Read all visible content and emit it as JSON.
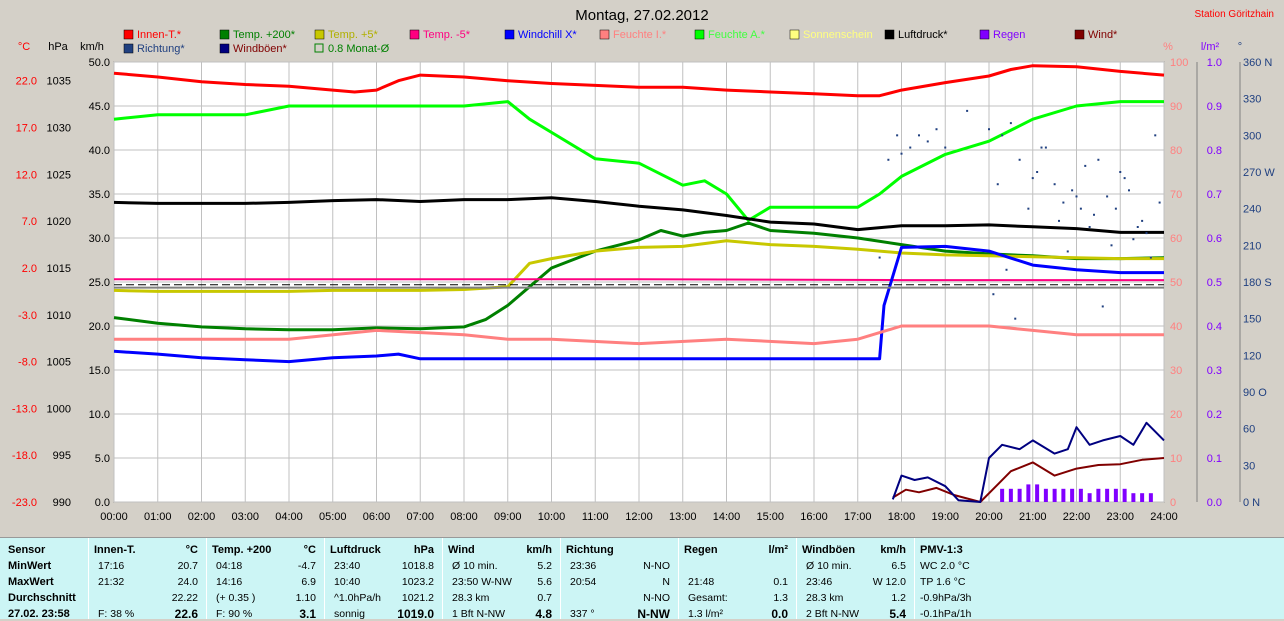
{
  "header": {
    "title": "Montag, 27.02.2012",
    "station": "Station Göritzhain"
  },
  "legend": [
    {
      "label": "Innen-T.*",
      "color": "#ff0000",
      "text_color": "#ff0000",
      "box": "fill"
    },
    {
      "label": "Temp. +200*",
      "color": "#008000",
      "text_color": "#008000",
      "box": "fill"
    },
    {
      "label": "Temp. +5*",
      "color": "#c8c800",
      "text_color": "#b0b000",
      "box": "fill"
    },
    {
      "label": "Temp. -5*",
      "color": "#ff0080",
      "text_color": "#ff0080",
      "box": "fill"
    },
    {
      "label": "Windchill X*",
      "color": "#0000ff",
      "text_color": "#0000ff",
      "box": "fill"
    },
    {
      "label": "Feuchte I.*",
      "color": "#ff8080",
      "text_color": "#ff8080",
      "box": "fill"
    },
    {
      "label": "Feuchte A.*",
      "color": "#00ff00",
      "text_color": "#40ff40",
      "box": "fill"
    },
    {
      "label": "Sonnenschein",
      "color": "#ffff80",
      "text_color": "#ffff80",
      "box": "fill"
    },
    {
      "label": "Luftdruck*",
      "color": "#000000",
      "text_color": "#000000",
      "box": "fill"
    },
    {
      "label": "Regen",
      "color": "#8000ff",
      "text_color": "#8000ff",
      "box": "fill"
    },
    {
      "label": "Wind*",
      "color": "#800000",
      "text_color": "#800000",
      "box": "fill"
    },
    {
      "label": "Richtung*",
      "color": "#204080",
      "text_color": "#204080",
      "box": "fill"
    },
    {
      "label": "Windböen*",
      "color": "#000080",
      "text_color": "#800000",
      "box": "fill"
    },
    {
      "label": "0.8 Monat-Ø",
      "color": "#008000",
      "text_color": "#008000",
      "box": "outline"
    }
  ],
  "axes": {
    "left_units": [
      "°C",
      "hPa",
      "km/h"
    ],
    "right_units": [
      "%",
      "l/m²",
      "°"
    ],
    "temp_ticks": [
      "22.0",
      "17.0",
      "12.0",
      "7.0",
      "2.0",
      "-3.0",
      "-8.0",
      "-13.0",
      "-18.0",
      "-23.0"
    ],
    "hpa_ticks": [
      "1035",
      "1030",
      "1025",
      "1020",
      "1015",
      "1010",
      "1005",
      "1000",
      "995",
      "990"
    ],
    "kmh_ticks": [
      "50.0",
      "45.0",
      "40.0",
      "35.0",
      "30.0",
      "25.0",
      "20.0",
      "15.0",
      "10.0",
      "5.0",
      "0.0"
    ],
    "pct_ticks": [
      "100",
      "90",
      "80",
      "70",
      "60",
      "50",
      "40",
      "30",
      "20",
      "10",
      "0"
    ],
    "rain_ticks": [
      "1.0",
      "0.9",
      "0.8",
      "0.7",
      "0.6",
      "0.5",
      "0.4",
      "0.3",
      "0.2",
      "0.1",
      "0.0"
    ],
    "dir_ticks": [
      "360 N",
      "330",
      "300",
      "270 W",
      "240",
      "210",
      "180 S",
      "150",
      "120",
      "90 O",
      "60",
      "30",
      "0 N"
    ],
    "time_ticks": [
      "00:00",
      "01:00",
      "02:00",
      "03:00",
      "04:00",
      "05:00",
      "06:00",
      "07:00",
      "08:00",
      "09:00",
      "10:00",
      "11:00",
      "12:00",
      "13:00",
      "14:00",
      "15:00",
      "16:00",
      "17:00",
      "18:00",
      "19:00",
      "20:00",
      "21:00",
      "22:00",
      "23:00",
      "24:00"
    ]
  },
  "chart_data": {
    "type": "line",
    "title": "Montag, 27.02.2012",
    "x_unit": "hour of day",
    "xlim": [
      0,
      24
    ],
    "axes_ranges": {
      "temperature_c": [
        -23,
        24
      ],
      "pressure_hpa": [
        990,
        1037
      ],
      "wind_kmh": [
        0,
        50
      ],
      "humidity_pct": [
        0,
        100
      ],
      "rain_lm2": [
        0,
        1.0
      ],
      "direction_deg": [
        0,
        360
      ]
    },
    "grid": true,
    "series": [
      {
        "name": "Innen-T.*",
        "color": "#ff0000",
        "axis": "temperature_c",
        "x": [
          0,
          1,
          2,
          3,
          4,
          5,
          5.5,
          6,
          6.5,
          7,
          8,
          9,
          10,
          11,
          12,
          13,
          14,
          15,
          16,
          17,
          17.5,
          18,
          19,
          20,
          20.5,
          21,
          22,
          23,
          24
        ],
        "y": [
          22.8,
          22.4,
          21.9,
          21.6,
          21.4,
          21.0,
          20.8,
          21.0,
          22.0,
          22.6,
          22.4,
          22.0,
          21.7,
          21.5,
          21.3,
          21.3,
          21.0,
          20.8,
          20.6,
          20.4,
          20.4,
          21.0,
          21.8,
          22.5,
          23.2,
          23.6,
          23.5,
          23.0,
          22.6
        ]
      },
      {
        "name": "Temp. +200*",
        "color": "#008000",
        "axis": "temperature_c",
        "x": [
          0,
          1,
          2,
          3,
          4,
          5,
          6,
          7,
          8,
          8.5,
          9,
          9.5,
          10,
          11,
          12,
          12.5,
          13,
          13.5,
          14,
          14.5,
          15,
          16,
          17,
          18,
          19,
          20,
          21,
          22,
          23,
          24
        ],
        "y": [
          -3.3,
          -3.9,
          -4.3,
          -4.5,
          -4.6,
          -4.6,
          -4.4,
          -4.5,
          -4.3,
          -3.5,
          -2.0,
          0.0,
          2.0,
          3.8,
          5.0,
          6.0,
          5.4,
          5.8,
          6.0,
          6.8,
          6.0,
          5.7,
          5.2,
          4.5,
          3.8,
          3.5,
          3.3,
          3.0,
          3.0,
          3.1
        ]
      },
      {
        "name": "Temp. +5*",
        "color": "#c8c800",
        "axis": "temperature_c",
        "x": [
          0,
          1,
          2,
          3,
          4,
          5,
          6,
          7,
          8,
          9,
          9.5,
          10,
          11,
          12,
          13,
          14,
          15,
          16,
          17,
          18,
          19,
          20,
          21,
          22,
          23,
          24
        ],
        "y": [
          -0.4,
          -0.5,
          -0.5,
          -0.5,
          -0.5,
          -0.4,
          -0.4,
          -0.4,
          -0.3,
          0.0,
          2.5,
          3.0,
          3.8,
          4.2,
          4.3,
          4.9,
          4.5,
          4.3,
          4.0,
          3.6,
          3.4,
          3.3,
          3.2,
          3.1,
          3.0,
          3.0
        ]
      },
      {
        "name": "Temp. -5*",
        "color": "#ff0080",
        "axis": "temperature_c",
        "x": [
          0,
          6,
          12,
          18,
          24
        ],
        "y": [
          0.8,
          0.8,
          0.8,
          0.7,
          0.7
        ]
      },
      {
        "name": "Windchill X*",
        "color": "#0000ff",
        "axis": "temperature_c",
        "x": [
          0,
          1,
          2,
          3,
          4,
          5,
          6,
          6.5,
          7,
          8,
          9,
          10,
          11,
          12,
          13,
          14,
          15,
          16,
          17,
          17.5,
          17.6,
          18,
          19,
          20,
          21,
          22,
          23,
          24
        ],
        "y": [
          -6.9,
          -7.2,
          -7.6,
          -7.8,
          -8.0,
          -7.6,
          -7.4,
          -7.2,
          -7.7,
          -7.7,
          -7.7,
          -7.7,
          -7.7,
          -7.7,
          -7.7,
          -7.7,
          -7.7,
          -7.7,
          -7.7,
          -7.7,
          -2.0,
          4.2,
          4.3,
          3.8,
          2.3,
          1.8,
          1.5,
          1.5
        ]
      },
      {
        "name": "Feuchte I.*",
        "color": "#ff8080",
        "axis": "humidity_pct",
        "x": [
          0,
          2,
          4,
          6,
          8,
          9,
          10,
          12,
          14,
          16,
          17,
          18,
          19,
          20,
          21,
          22,
          23,
          24
        ],
        "y": [
          37,
          37,
          37,
          39,
          38,
          37,
          37,
          36,
          37,
          36,
          37,
          40,
          40,
          40,
          39,
          38,
          38,
          38
        ]
      },
      {
        "name": "Feuchte A.*",
        "color": "#00ff00",
        "axis": "humidity_pct",
        "x": [
          0,
          1,
          2,
          3,
          4,
          5,
          6,
          7,
          8,
          9,
          9.5,
          10,
          11,
          12,
          13,
          13.5,
          14,
          14.5,
          15,
          16,
          17,
          17.5,
          18,
          19,
          20,
          21,
          22,
          23,
          24
        ],
        "y": [
          87,
          88,
          88,
          88,
          90,
          90,
          90,
          90,
          90,
          91,
          87,
          84,
          78,
          77,
          72,
          73,
          70,
          64,
          67,
          67,
          67,
          70,
          74,
          79,
          82,
          87,
          90,
          91,
          91
        ]
      },
      {
        "name": "Luftdruck*",
        "color": "#000000",
        "axis": "pressure_hpa",
        "x": [
          0,
          1,
          2,
          3,
          4,
          5,
          6,
          7,
          8,
          9,
          10,
          11,
          12,
          13,
          14,
          15,
          16,
          17,
          18,
          19,
          20,
          21,
          22,
          23,
          24
        ],
        "y": [
          1022.0,
          1021.9,
          1021.9,
          1021.9,
          1022.0,
          1022.2,
          1022.3,
          1022.1,
          1022.3,
          1022.3,
          1022.5,
          1022.1,
          1021.6,
          1021.2,
          1020.6,
          1019.9,
          1019.7,
          1019.1,
          1019.5,
          1019.5,
          1019.6,
          1019.4,
          1019.2,
          1018.8,
          1018.8
        ]
      },
      {
        "name": "Wind*",
        "color": "#800000",
        "axis": "wind_kmh",
        "x": [
          17.8,
          18.1,
          18.4,
          18.8,
          19.2,
          19.8,
          20.2,
          20.5,
          21.0,
          21.5,
          22.0,
          22.5,
          23.0,
          23.5,
          24.0
        ],
        "y": [
          0.5,
          1.4,
          1.1,
          1.6,
          0.8,
          0.0,
          2.0,
          3.5,
          4.5,
          3.0,
          3.8,
          4.2,
          4.3,
          4.8,
          5.0
        ]
      },
      {
        "name": "Windböen*",
        "color": "#000080",
        "axis": "wind_kmh",
        "x": [
          17.8,
          18.0,
          18.3,
          18.6,
          19.0,
          19.3,
          19.8,
          20.0,
          20.3,
          20.7,
          21.0,
          21.5,
          21.8,
          22.0,
          22.3,
          22.6,
          23.0,
          23.3,
          23.6,
          24.0
        ],
        "y": [
          0.3,
          3.0,
          2.5,
          2.8,
          1.8,
          0.2,
          0.0,
          5.0,
          6.5,
          6.0,
          7.0,
          5.5,
          6.0,
          8.5,
          6.5,
          7.0,
          7.5,
          6.5,
          9.0,
          7.0
        ]
      },
      {
        "name": "Monat-Ø",
        "color": "#808080",
        "axis": "temperature_c",
        "x": [
          0,
          24
        ],
        "y": [
          -0.1,
          -0.1
        ]
      },
      {
        "name": "Monat-Ø dashed",
        "color": "#000000",
        "axis": "temperature_c",
        "x": [
          0,
          24
        ],
        "y": [
          0.2,
          0.2
        ]
      }
    ],
    "direction_points": {
      "name": "Richtung*",
      "color": "#204080",
      "axis": "direction_deg",
      "x": [
        17.5,
        17.7,
        17.9,
        18.0,
        18.2,
        18.4,
        18.6,
        18.8,
        19.0,
        19.5,
        20.0,
        20.2,
        20.3,
        20.5,
        20.7,
        20.9,
        21.1,
        21.3,
        21.5,
        21.7,
        21.9,
        22.1,
        22.3,
        22.5,
        22.7,
        22.9,
        23.1,
        23.3,
        23.5,
        23.7,
        23.9,
        20.1,
        20.4,
        20.6,
        21.0,
        21.2,
        21.6,
        21.8,
        22.0,
        22.2,
        22.4,
        22.6,
        22.8,
        23.0,
        23.2,
        23.4,
        23.6,
        23.8
      ],
      "y": [
        200,
        280,
        300,
        285,
        290,
        300,
        295,
        305,
        290,
        320,
        305,
        260,
        300,
        310,
        280,
        240,
        270,
        290,
        260,
        245,
        255,
        240,
        225,
        280,
        250,
        240,
        265,
        215,
        230,
        200,
        245,
        170,
        190,
        150,
        265,
        290,
        230,
        205,
        250,
        275,
        235,
        160,
        210,
        270,
        255,
        225,
        220,
        300
      ]
    },
    "rain_bars": {
      "name": "Regen",
      "color": "#8000ff",
      "axis": "rain_lm2",
      "x": [
        20.3,
        20.5,
        20.7,
        20.9,
        21.1,
        21.3,
        21.5,
        21.7,
        21.9,
        22.1,
        22.3,
        22.5,
        22.7,
        22.9,
        23.1,
        23.3,
        23.5,
        23.7
      ],
      "y": [
        0.03,
        0.03,
        0.03,
        0.04,
        0.04,
        0.03,
        0.03,
        0.03,
        0.03,
        0.03,
        0.02,
        0.03,
        0.03,
        0.03,
        0.03,
        0.02,
        0.02,
        0.02
      ]
    }
  },
  "summary": {
    "sensor": {
      "header": "Sensor",
      "rows": [
        "MinWert",
        "MaxWert",
        "Durchschnitt",
        "27.02. 23:58"
      ]
    },
    "innen": {
      "header": "Innen-T.",
      "unit": "°C",
      "rows": [
        [
          "17:16",
          "20.7"
        ],
        [
          "21:32",
          "24.0"
        ],
        [
          "",
          "22.22"
        ],
        [
          "F: 38 %",
          "22.6"
        ]
      ]
    },
    "temp200": {
      "header": "Temp. +200",
      "unit": "°C",
      "rows": [
        [
          "04:18",
          "-4.7"
        ],
        [
          "14:16",
          "6.9"
        ],
        [
          "(+ 0.35 )",
          "1.10"
        ],
        [
          "F: 90 %",
          "3.1"
        ]
      ]
    },
    "luftdruck": {
      "header": "Luftdruck",
      "unit": "hPa",
      "rows": [
        [
          "23:40",
          "1018.8"
        ],
        [
          "10:40",
          "1023.2"
        ],
        [
          "^1.0hPa/h",
          "1021.2"
        ],
        [
          "sonnig",
          "1019.0"
        ]
      ]
    },
    "wind": {
      "header": "Wind",
      "unit": "km/h",
      "rows": [
        [
          "Ø 10 min.",
          "5.2"
        ],
        [
          "23:50    W-NW",
          "5.6"
        ],
        [
          "28.3 km",
          "0.7"
        ],
        [
          "1 Bft N-NW",
          "4.8"
        ]
      ]
    },
    "richtung": {
      "header": "Richtung",
      "rows": [
        [
          "23:36",
          "N-NO"
        ],
        [
          "20:54",
          "N"
        ],
        [
          "",
          "N-NO"
        ],
        [
          "337 °",
          "N-NW"
        ]
      ]
    },
    "regen": {
      "header": "Regen",
      "unit": "l/m²",
      "rows": [
        [
          "",
          ""
        ],
        [
          "21:48",
          "0.1"
        ],
        [
          "Gesamt:",
          "1.3"
        ],
        [
          "1.3 l/m²",
          "0.0"
        ]
      ]
    },
    "boeen": {
      "header": "Windböen",
      "unit": "km/h",
      "rows": [
        [
          "Ø 10 min.",
          "6.5"
        ],
        [
          "23:46",
          "W 12.0"
        ],
        [
          "28.3 km",
          "1.2"
        ],
        [
          "2 Bft N-NW",
          "5.4"
        ]
      ]
    },
    "pmv": {
      "header": "PMV-1:3",
      "rows": [
        "WC 2.0 °C",
        "TP 1.6 °C",
        "-0.9hPa/3h",
        "-0.1hPa/1h"
      ]
    }
  }
}
